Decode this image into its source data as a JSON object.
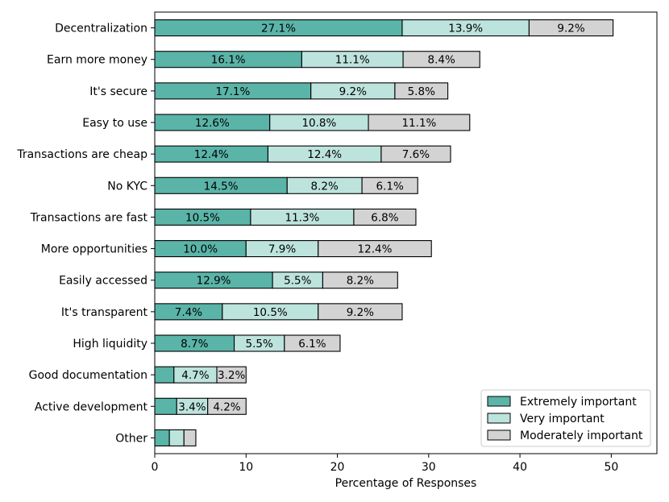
{
  "chart_data": {
    "type": "bar",
    "orientation": "horizontal",
    "stacked": true,
    "xlabel": "Percentage of Responses",
    "ylabel": "",
    "title": "",
    "xlim": [
      0,
      55
    ],
    "x_ticks": [
      0,
      10,
      20,
      30,
      40,
      50
    ],
    "grid": false,
    "legend_position": "bottom-right",
    "categories": [
      "Decentralization",
      "Earn more money",
      "It's secure",
      "Easy to use",
      "Transactions are cheap",
      "No KYC",
      "Transactions are fast",
      "More opportunities",
      "Easily accessed",
      "It's transparent",
      "High liquidity",
      "Good documentation",
      "Active development",
      "Other"
    ],
    "series": [
      {
        "name": "Extremely important",
        "color": "#5ab4a8",
        "values": [
          27.1,
          16.1,
          17.1,
          12.6,
          12.4,
          14.5,
          10.5,
          10.0,
          12.9,
          7.4,
          8.7,
          2.1,
          2.4,
          1.6
        ],
        "labels": [
          "27.1%",
          "16.1%",
          "17.1%",
          "12.6%",
          "12.4%",
          "14.5%",
          "10.5%",
          "10.0%",
          "12.9%",
          "7.4%",
          "8.7%",
          "",
          "",
          ""
        ]
      },
      {
        "name": "Very important",
        "color": "#bde3dd",
        "values": [
          13.9,
          11.1,
          9.2,
          10.8,
          12.4,
          8.2,
          11.3,
          7.9,
          5.5,
          10.5,
          5.5,
          4.7,
          3.4,
          1.6
        ],
        "labels": [
          "13.9%",
          "11.1%",
          "9.2%",
          "10.8%",
          "12.4%",
          "8.2%",
          "11.3%",
          "7.9%",
          "5.5%",
          "10.5%",
          "5.5%",
          "4.7%",
          "3.4%",
          ""
        ]
      },
      {
        "name": "Moderately important",
        "color": "#d3d3d3",
        "values": [
          9.2,
          8.4,
          5.8,
          11.1,
          7.6,
          6.1,
          6.8,
          12.4,
          8.2,
          9.2,
          6.1,
          3.2,
          4.2,
          1.3
        ],
        "labels": [
          "9.2%",
          "8.4%",
          "5.8%",
          "11.1%",
          "7.6%",
          "6.1%",
          "6.8%",
          "12.4%",
          "8.2%",
          "9.2%",
          "6.1%",
          "3.2%",
          "4.2%",
          ""
        ]
      }
    ]
  }
}
